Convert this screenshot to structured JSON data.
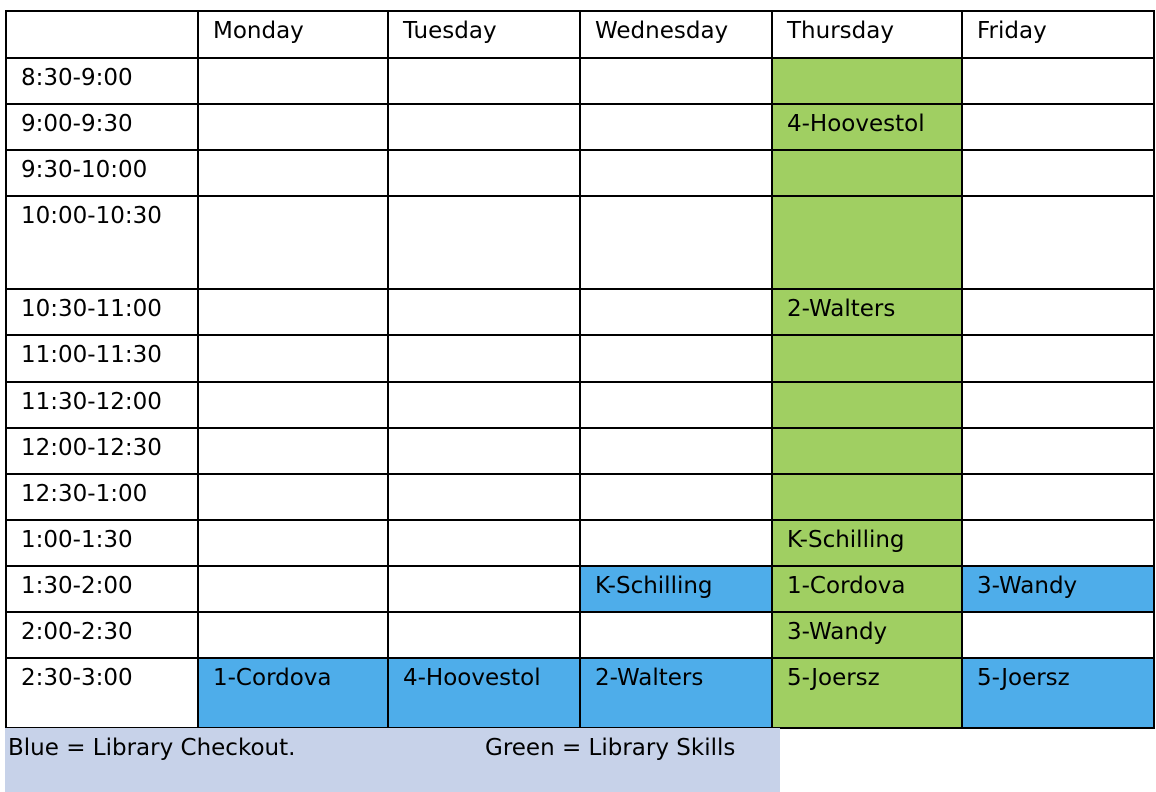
{
  "colors": {
    "blue": "#4eadea",
    "green": "#a0cf62"
  },
  "header": [
    "",
    "Monday",
    "Tuesday",
    "Wednesday",
    "Thursday",
    "Friday"
  ],
  "rows": [
    {
      "time": "8:30-9:00",
      "cells": [
        {
          "t": "",
          "c": ""
        },
        {
          "t": "",
          "c": ""
        },
        {
          "t": "",
          "c": ""
        },
        {
          "t": "",
          "c": "green"
        },
        {
          "t": "",
          "c": ""
        }
      ]
    },
    {
      "time": "9:00-9:30",
      "cells": [
        {
          "t": "",
          "c": ""
        },
        {
          "t": "",
          "c": ""
        },
        {
          "t": "",
          "c": ""
        },
        {
          "t": "4-Hoovestol",
          "c": "green"
        },
        {
          "t": "",
          "c": ""
        }
      ]
    },
    {
      "time": "9:30-10:00",
      "cells": [
        {
          "t": "",
          "c": ""
        },
        {
          "t": "",
          "c": ""
        },
        {
          "t": "",
          "c": ""
        },
        {
          "t": "",
          "c": "green"
        },
        {
          "t": "",
          "c": ""
        }
      ]
    },
    {
      "time": "10:00-10:30",
      "cells": [
        {
          "t": "",
          "c": ""
        },
        {
          "t": "",
          "c": ""
        },
        {
          "t": "",
          "c": ""
        },
        {
          "t": "",
          "c": "green"
        },
        {
          "t": "",
          "c": ""
        }
      ]
    },
    {
      "time": "10:30-11:00",
      "cells": [
        {
          "t": "",
          "c": ""
        },
        {
          "t": "",
          "c": ""
        },
        {
          "t": "",
          "c": ""
        },
        {
          "t": "2-Walters",
          "c": "green"
        },
        {
          "t": "",
          "c": ""
        }
      ]
    },
    {
      "time": "11:00-11:30",
      "cells": [
        {
          "t": "",
          "c": ""
        },
        {
          "t": "",
          "c": ""
        },
        {
          "t": "",
          "c": ""
        },
        {
          "t": "",
          "c": "green"
        },
        {
          "t": "",
          "c": ""
        }
      ]
    },
    {
      "time": "11:30-12:00",
      "cells": [
        {
          "t": "",
          "c": ""
        },
        {
          "t": "",
          "c": ""
        },
        {
          "t": "",
          "c": ""
        },
        {
          "t": "",
          "c": "green"
        },
        {
          "t": "",
          "c": ""
        }
      ]
    },
    {
      "time": "12:00-12:30",
      "cells": [
        {
          "t": "",
          "c": ""
        },
        {
          "t": "",
          "c": ""
        },
        {
          "t": "",
          "c": ""
        },
        {
          "t": "",
          "c": "green"
        },
        {
          "t": "",
          "c": ""
        }
      ]
    },
    {
      "time": "12:30-1:00",
      "cells": [
        {
          "t": "",
          "c": ""
        },
        {
          "t": "",
          "c": ""
        },
        {
          "t": "",
          "c": ""
        },
        {
          "t": "",
          "c": "green"
        },
        {
          "t": "",
          "c": ""
        }
      ]
    },
    {
      "time": "1:00-1:30",
      "cells": [
        {
          "t": "",
          "c": ""
        },
        {
          "t": "",
          "c": ""
        },
        {
          "t": "",
          "c": ""
        },
        {
          "t": "K-Schilling",
          "c": "green"
        },
        {
          "t": "",
          "c": ""
        }
      ]
    },
    {
      "time": "1:30-2:00",
      "cells": [
        {
          "t": "",
          "c": ""
        },
        {
          "t": "",
          "c": ""
        },
        {
          "t": "K-Schilling",
          "c": "blue"
        },
        {
          "t": "1-Cordova",
          "c": "green"
        },
        {
          "t": "3-Wandy",
          "c": "blue"
        }
      ]
    },
    {
      "time": "2:00-2:30",
      "cells": [
        {
          "t": "",
          "c": ""
        },
        {
          "t": "",
          "c": ""
        },
        {
          "t": "",
          "c": ""
        },
        {
          "t": "3-Wandy",
          "c": "green"
        },
        {
          "t": "",
          "c": ""
        }
      ]
    },
    {
      "time": "2:30-3:00",
      "cells": [
        {
          "t": "1-Cordova",
          "c": "blue"
        },
        {
          "t": "4-Hoovestol",
          "c": "blue"
        },
        {
          "t": "2-Walters",
          "c": "blue"
        },
        {
          "t": "5-Joersz",
          "c": "green"
        },
        {
          "t": "5-Joersz",
          "c": "blue"
        }
      ]
    }
  ],
  "legend": {
    "blue": "Blue = Library Checkout.",
    "green": "Green = Library Skills"
  }
}
